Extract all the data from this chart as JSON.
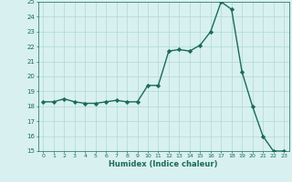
{
  "x": [
    0,
    1,
    2,
    3,
    4,
    5,
    6,
    7,
    8,
    9,
    10,
    11,
    12,
    13,
    14,
    15,
    16,
    17,
    18,
    19,
    20,
    21,
    22,
    23
  ],
  "y": [
    18.3,
    18.3,
    18.5,
    18.3,
    18.2,
    18.2,
    18.3,
    18.4,
    18.3,
    18.3,
    19.4,
    19.4,
    21.7,
    21.8,
    21.7,
    22.1,
    23.0,
    25.0,
    24.5,
    20.3,
    18.0,
    16.0,
    15.0,
    15.0
  ],
  "xlabel": "Humidex (Indice chaleur)",
  "ylabel": "",
  "ylim": [
    15,
    25
  ],
  "xlim": [
    -0.5,
    23.5
  ],
  "yticks": [
    15,
    16,
    17,
    18,
    19,
    20,
    21,
    22,
    23,
    24,
    25
  ],
  "xticks": [
    0,
    1,
    2,
    3,
    4,
    5,
    6,
    7,
    8,
    9,
    10,
    11,
    12,
    13,
    14,
    15,
    16,
    17,
    18,
    19,
    20,
    21,
    22,
    23
  ],
  "line_color": "#1a6b5a",
  "marker_color": "#1a6b5a",
  "bg_color": "#d8f0f0",
  "grid_color": "#b0d8d8",
  "tick_label_color": "#1a6b5a",
  "xlabel_color": "#1a6b5a",
  "marker": "D",
  "marker_size": 2.2,
  "line_width": 1.0
}
